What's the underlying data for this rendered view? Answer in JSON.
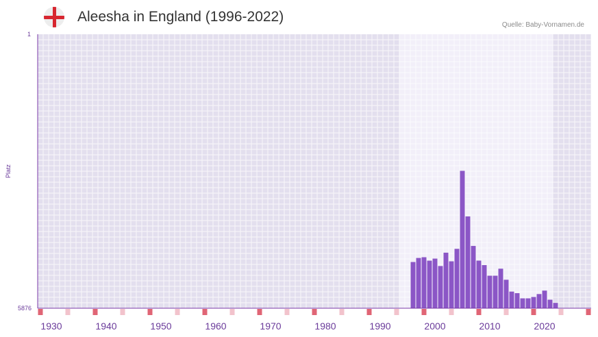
{
  "header": {
    "title": "Aleesha in England (1996-2022)",
    "source": "Quelle: Baby-Vornamen.de",
    "flag_icon": "england-flag-icon"
  },
  "colors": {
    "background_band": "#e3dfee",
    "highlight_band": "#f2eff9",
    "bar": "#8b56c6",
    "axis": "#7b3aa8",
    "marker": "#e06575",
    "marker_light": "#f2c3cc",
    "label": "#6a3a9a"
  },
  "chart_data": {
    "type": "bar",
    "title": "Aleesha in England (1996-2022)",
    "xlabel": "",
    "ylabel": "Platz",
    "y_axis_inverted": true,
    "ylim": [
      1,
      5876
    ],
    "y_tick_labels": [
      "1",
      "5876"
    ],
    "xlim": [
      1928,
      2028
    ],
    "x_tick_labels": [
      "1930",
      "1940",
      "1950",
      "1960",
      "1970",
      "1980",
      "1990",
      "2000",
      "2010",
      "2020"
    ],
    "highlight_range": [
      1994,
      2021
    ],
    "series": [
      {
        "name": "Platz",
        "x": [
          1996,
          1997,
          1998,
          1999,
          2000,
          2001,
          2002,
          2003,
          2004,
          2005,
          2006,
          2007,
          2008,
          2009,
          2010,
          2011,
          2012,
          2013,
          2014,
          2015,
          2016,
          2017,
          2018,
          2019,
          2020,
          2021,
          2022
        ],
        "values": [
          4885,
          4798,
          4782,
          4856,
          4812,
          4971,
          4685,
          4870,
          4602,
          2930,
          3907,
          4540,
          4855,
          4951,
          5178,
          5178,
          5028,
          5265,
          5519,
          5553,
          5664,
          5664,
          5635,
          5572,
          5498,
          5693,
          5761
        ]
      }
    ],
    "decade_markers": [
      1928,
      1938,
      1948,
      1958,
      1968,
      1978,
      1988,
      1998,
      2008,
      2018,
      2028
    ],
    "minor_markers": [
      1933,
      1943,
      1953,
      1963,
      1973,
      1983,
      1993,
      2003,
      2013,
      2023
    ]
  }
}
